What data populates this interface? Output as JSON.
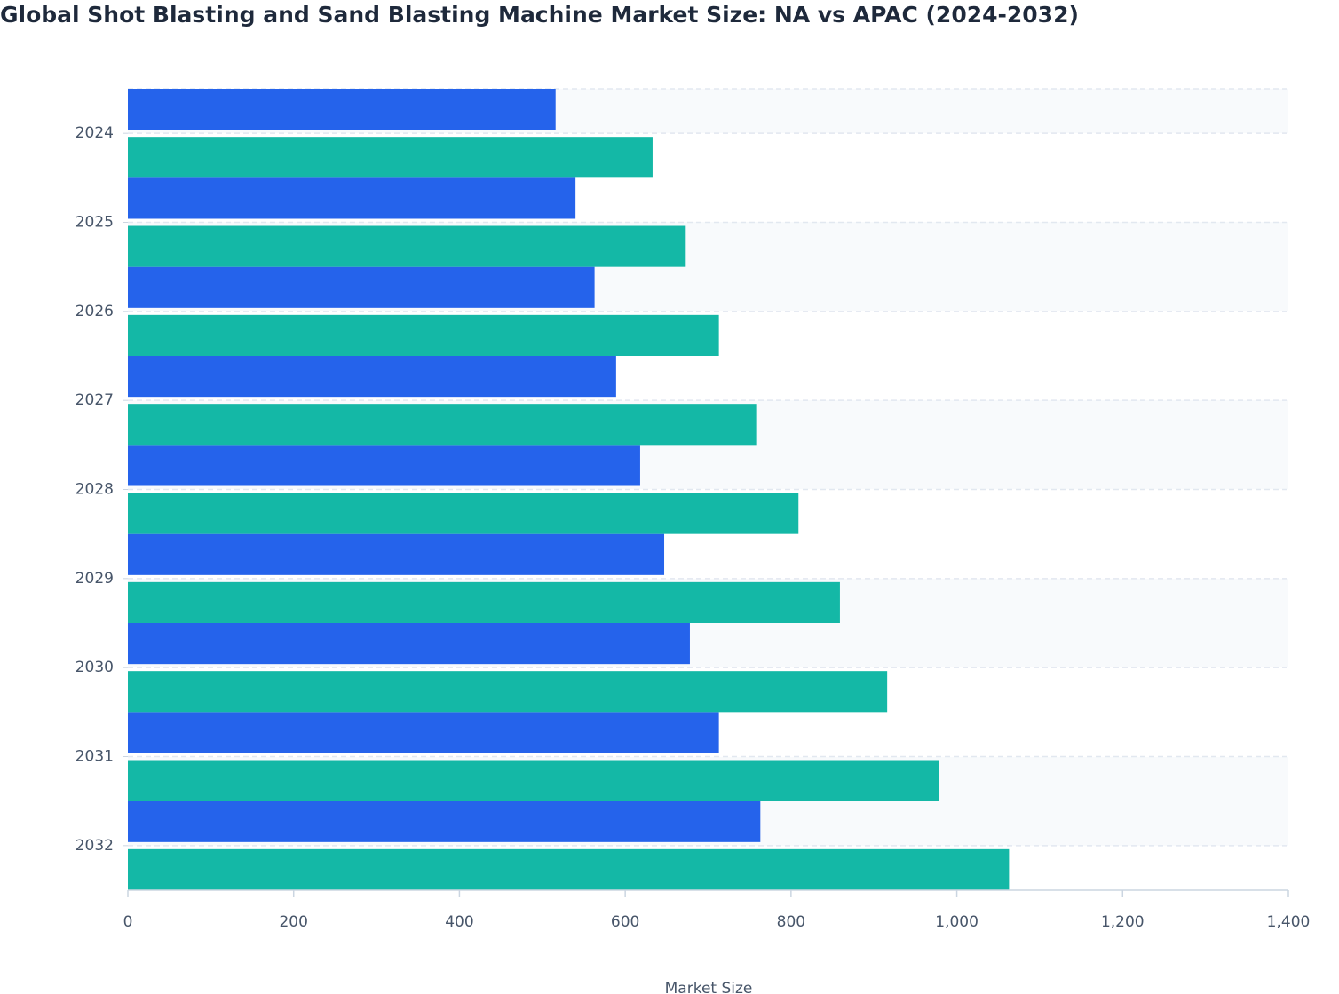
{
  "chart_data": {
    "type": "bar",
    "orientation": "horizontal",
    "title": "Global Shot Blasting and Sand Blasting Machine Market Size: NA vs APAC (2024-2032)",
    "x_label": "Market Size",
    "categories": [
      "2024",
      "2025",
      "2026",
      "2027",
      "2028",
      "2029",
      "2030",
      "2031",
      "2032"
    ],
    "series": [
      {
        "color": "#2563eb",
        "values": [
          516,
          540,
          563,
          589,
          618,
          647,
          678,
          713,
          763
        ]
      },
      {
        "color": "#14b8a6",
        "values": [
          633,
          673,
          713,
          758,
          809,
          859,
          916,
          979,
          1063
        ]
      }
    ],
    "xlim": [
      0,
      1400
    ],
    "xticks": [
      0,
      200,
      400,
      600,
      800,
      {
        "value": 1000,
        "label": "1,000"
      },
      {
        "value": 1200,
        "label": "1,200"
      },
      {
        "value": 1400,
        "label": "1,400"
      }
    ],
    "grid": true
  }
}
